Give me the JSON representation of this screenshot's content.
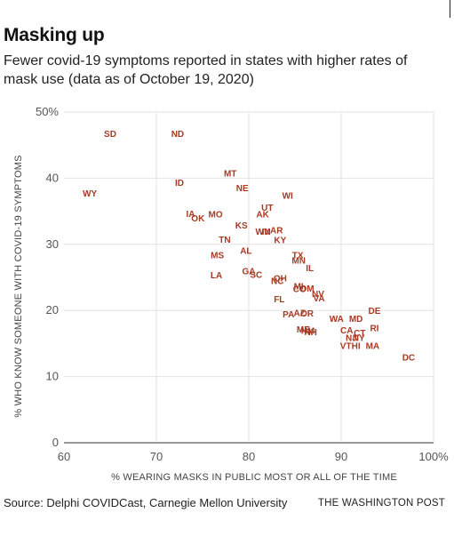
{
  "header": {
    "title": "Masking up",
    "subtitle": "Fewer covid-19 symptoms reported in states with higher rates of mask use (data as of October 19, 2020)"
  },
  "footer": {
    "source": "Source: Delphi COVIDCast, Carnegie Mellon University",
    "credit": "THE WASHINGTON POST"
  },
  "chart_data": {
    "type": "scatter",
    "xlabel": "% WEARING MASKS IN PUBLIC MOST OR ALL OF THE TIME",
    "ylabel": "% WHO KNOW SOMEONE WITH COVID-19 SYMPTOMS",
    "xlim": [
      60,
      100
    ],
    "ylim": [
      0,
      50
    ],
    "x_ticks": [
      60,
      70,
      80,
      90,
      100
    ],
    "x_tick_labels": [
      "60",
      "70",
      "80",
      "90",
      "100%"
    ],
    "y_ticks": [
      0,
      10,
      20,
      30,
      40,
      50
    ],
    "y_tick_labels": [
      "0",
      "10",
      "20",
      "30",
      "40",
      "50%"
    ],
    "grid": true,
    "marker_color": "#a83a25",
    "points": [
      {
        "label": "SD",
        "x": 65.0,
        "y": 46.8
      },
      {
        "label": "ND",
        "x": 72.3,
        "y": 46.8
      },
      {
        "label": "WY",
        "x": 62.8,
        "y": 37.8
      },
      {
        "label": "MT",
        "x": 78.0,
        "y": 40.8
      },
      {
        "label": "ID",
        "x": 72.5,
        "y": 39.4
      },
      {
        "label": "NE",
        "x": 79.3,
        "y": 38.6
      },
      {
        "label": "WI",
        "x": 84.2,
        "y": 37.4
      },
      {
        "label": "UT",
        "x": 82.0,
        "y": 35.6
      },
      {
        "label": "IA",
        "x": 73.7,
        "y": 34.7
      },
      {
        "label": "MO",
        "x": 76.4,
        "y": 34.6
      },
      {
        "label": "AK",
        "x": 81.5,
        "y": 34.6
      },
      {
        "label": "OK",
        "x": 74.5,
        "y": 34.0
      },
      {
        "label": "KS",
        "x": 79.2,
        "y": 32.9
      },
      {
        "label": "WV",
        "x": 81.5,
        "y": 32.0
      },
      {
        "label": "IN",
        "x": 81.9,
        "y": 32.0
      },
      {
        "label": "AR",
        "x": 83.0,
        "y": 32.2
      },
      {
        "label": "TN",
        "x": 77.4,
        "y": 30.8
      },
      {
        "label": "KY",
        "x": 83.4,
        "y": 30.7
      },
      {
        "label": "AL",
        "x": 79.7,
        "y": 29.1
      },
      {
        "label": "MS",
        "x": 76.6,
        "y": 28.4
      },
      {
        "label": "TX",
        "x": 85.3,
        "y": 28.4
      },
      {
        "label": "MN",
        "x": 85.4,
        "y": 27.6
      },
      {
        "label": "IL",
        "x": 86.6,
        "y": 26.5
      },
      {
        "label": "GA",
        "x": 80.0,
        "y": 26.0
      },
      {
        "label": "LA",
        "x": 76.5,
        "y": 25.4
      },
      {
        "label": "SC",
        "x": 80.8,
        "y": 25.5
      },
      {
        "label": "OH",
        "x": 83.4,
        "y": 24.9
      },
      {
        "label": "NC",
        "x": 83.1,
        "y": 24.5
      },
      {
        "label": "MI",
        "x": 85.4,
        "y": 23.7
      },
      {
        "label": "CO",
        "x": 85.5,
        "y": 23.3
      },
      {
        "label": "OM",
        "x": 86.3,
        "y": 23.4
      },
      {
        "label": "NV",
        "x": 87.5,
        "y": 22.6
      },
      {
        "label": "VA",
        "x": 87.6,
        "y": 21.9
      },
      {
        "label": "FL",
        "x": 83.3,
        "y": 21.8
      },
      {
        "label": "DE",
        "x": 93.6,
        "y": 20.0
      },
      {
        "label": "PA",
        "x": 84.3,
        "y": 19.5
      },
      {
        "label": "AZ",
        "x": 85.5,
        "y": 19.7
      },
      {
        "label": "OR",
        "x": 86.3,
        "y": 19.6
      },
      {
        "label": "WA",
        "x": 89.5,
        "y": 18.8
      },
      {
        "label": "MD",
        "x": 91.6,
        "y": 18.8
      },
      {
        "label": "RI",
        "x": 93.6,
        "y": 17.4
      },
      {
        "label": "CA",
        "x": 90.6,
        "y": 17.1
      },
      {
        "label": "ME",
        "x": 85.9,
        "y": 17.2
      },
      {
        "label": "NM",
        "x": 86.4,
        "y": 17.0
      },
      {
        "label": "NH",
        "x": 86.7,
        "y": 16.8
      },
      {
        "label": "CT",
        "x": 92.0,
        "y": 16.7
      },
      {
        "label": "NJ",
        "x": 91.1,
        "y": 15.9
      },
      {
        "label": "NY",
        "x": 91.9,
        "y": 15.9
      },
      {
        "label": "VT",
        "x": 90.5,
        "y": 14.7
      },
      {
        "label": "HI",
        "x": 91.6,
        "y": 14.7
      },
      {
        "label": "MA",
        "x": 93.4,
        "y": 14.7
      },
      {
        "label": "DC",
        "x": 97.3,
        "y": 13.0
      }
    ]
  }
}
